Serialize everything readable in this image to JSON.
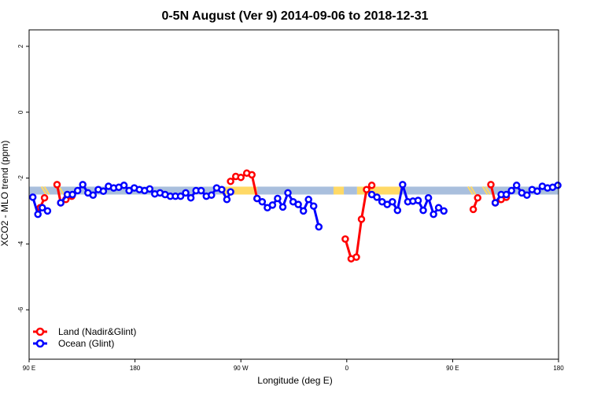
{
  "chart_data": {
    "type": "line",
    "title": "0-5N August (Ver 9)   2014-09-06 to 2018-12-31",
    "xlabel": "Longitude (deg E)",
    "ylabel": "XCO2 - MLO trend (ppm)",
    "xlim": [
      90,
      450
    ],
    "ylim": [
      -7.5,
      2.5
    ],
    "x_ticks": [
      {
        "value": 90,
        "label": "90 E"
      },
      {
        "value": 162,
        "label": "180"
      },
      {
        "value": 234,
        "label": "90 W"
      },
      {
        "value": 306,
        "label": "0"
      },
      {
        "value": 378,
        "label": "90 E"
      },
      {
        "value": 450,
        "label": "180"
      }
    ],
    "y_ticks": [
      {
        "value": 2,
        "label": "2"
      },
      {
        "value": 0,
        "label": "0"
      },
      {
        "value": -2,
        "label": "-2"
      },
      {
        "value": -4,
        "label": "-4"
      },
      {
        "value": -6,
        "label": "-6"
      }
    ],
    "band": {
      "y_center": -2.38,
      "half_height": 0.12,
      "land_color": "#ffd966",
      "ocean_color": "#a9bfdd",
      "segments": [
        {
          "x0": 90,
          "x1": 221,
          "type": "ocean"
        },
        {
          "x0": 221,
          "x1": 245,
          "type": "land"
        },
        {
          "x0": 245,
          "x1": 297,
          "type": "ocean"
        },
        {
          "x0": 297,
          "x1": 304,
          "type": "land"
        },
        {
          "x0": 304,
          "x1": 313,
          "type": "ocean"
        },
        {
          "x0": 313,
          "x1": 343,
          "type": "land"
        },
        {
          "x0": 343,
          "x1": 460,
          "type": "ocean"
        }
      ],
      "land_hatch_x": [
        100,
        102,
        110,
        112,
        390,
        392,
        400,
        402
      ]
    },
    "series": [
      {
        "name": "Land (Nadir&Glint)",
        "color": "#ff0000",
        "segments": [
          [
            [
              97.5,
              -2.9
            ],
            [
              100.5,
              -2.6
            ]
          ],
          [
            [
              109,
              -2.2
            ],
            [
              111.5,
              -2.75
            ],
            [
              115,
              -2.65
            ],
            [
              119,
              -2.55
            ]
          ],
          [
            [
              227,
              -2.1
            ],
            [
              230.5,
              -1.95
            ],
            [
              234,
              -1.98
            ],
            [
              238,
              -1.85
            ],
            [
              241.5,
              -1.9
            ],
            [
              245,
              -2.62
            ]
          ],
          [
            [
              305,
              -3.85
            ],
            [
              309,
              -4.45
            ],
            [
              312.5,
              -4.4
            ],
            [
              316,
              -3.25
            ],
            [
              319.5,
              -2.35
            ],
            [
              323,
              -2.22
            ]
          ],
          [
            [
              392,
              -2.95
            ],
            [
              395,
              -2.6
            ]
          ],
          [
            [
              404,
              -2.2
            ],
            [
              407,
              -2.75
            ],
            [
              411,
              -2.65
            ],
            [
              414.5,
              -2.58
            ]
          ]
        ]
      },
      {
        "name": "Ocean (Glint)",
        "color": "#0000ff",
        "segments": [
          [
            [
              92.5,
              -2.58
            ],
            [
              96,
              -3.1
            ],
            [
              99,
              -2.9
            ],
            [
              102.5,
              -3.0
            ]
          ],
          [
            [
              111.5,
              -2.75
            ],
            [
              116,
              -2.5
            ],
            [
              119.5,
              -2.5
            ],
            [
              123,
              -2.38
            ],
            [
              126.5,
              -2.2
            ],
            [
              130,
              -2.45
            ],
            [
              133.5,
              -2.52
            ],
            [
              137,
              -2.35
            ],
            [
              140.5,
              -2.4
            ],
            [
              144,
              -2.25
            ],
            [
              147.5,
              -2.3
            ],
            [
              151,
              -2.28
            ],
            [
              154.5,
              -2.22
            ],
            [
              158,
              -2.38
            ],
            [
              161.5,
              -2.3
            ],
            [
              165,
              -2.35
            ],
            [
              168.5,
              -2.38
            ],
            [
              172,
              -2.33
            ],
            [
              175.5,
              -2.48
            ],
            [
              179,
              -2.45
            ],
            [
              182.5,
              -2.5
            ],
            [
              186,
              -2.55
            ],
            [
              189.5,
              -2.55
            ],
            [
              193,
              -2.55
            ],
            [
              196.5,
              -2.45
            ],
            [
              200,
              -2.6
            ],
            [
              203.5,
              -2.38
            ],
            [
              207,
              -2.38
            ],
            [
              210.5,
              -2.55
            ],
            [
              214,
              -2.52
            ],
            [
              217.5,
              -2.3
            ],
            [
              221,
              -2.35
            ],
            [
              224.5,
              -2.65
            ],
            [
              227,
              -2.42
            ]
          ],
          [
            [
              245,
              -2.62
            ],
            [
              248.5,
              -2.72
            ],
            [
              252,
              -2.9
            ],
            [
              255.5,
              -2.82
            ],
            [
              259,
              -2.62
            ],
            [
              262.5,
              -2.88
            ],
            [
              266,
              -2.45
            ],
            [
              269.5,
              -2.72
            ],
            [
              273,
              -2.8
            ],
            [
              276.5,
              -3.0
            ],
            [
              280,
              -2.65
            ],
            [
              283.5,
              -2.85
            ],
            [
              287,
              -3.48
            ]
          ],
          [
            [
              323,
              -2.5
            ],
            [
              326.5,
              -2.58
            ],
            [
              330,
              -2.72
            ],
            [
              333.5,
              -2.8
            ],
            [
              337,
              -2.72
            ],
            [
              340.5,
              -2.98
            ],
            [
              344,
              -2.2
            ],
            [
              347.5,
              -2.72
            ],
            [
              351,
              -2.7
            ],
            [
              354.5,
              -2.68
            ],
            [
              358,
              -2.98
            ],
            [
              361.5,
              -2.6
            ],
            [
              365,
              -3.1
            ],
            [
              368.5,
              -2.9
            ],
            [
              372,
              -3.0
            ]
          ],
          [
            [
              407,
              -2.75
            ],
            [
              411,
              -2.5
            ],
            [
              414.5,
              -2.5
            ],
            [
              418,
              -2.38
            ],
            [
              421.5,
              -2.22
            ],
            [
              425,
              -2.45
            ],
            [
              428.5,
              -2.52
            ],
            [
              432,
              -2.35
            ],
            [
              435.5,
              -2.4
            ],
            [
              439,
              -2.25
            ],
            [
              442.5,
              -2.3
            ],
            [
              446,
              -2.28
            ],
            [
              449.5,
              -2.22
            ]
          ]
        ]
      }
    ],
    "legend": {
      "position": "bottom-left",
      "entries": [
        "Land (Nadir&Glint)",
        "Ocean (Glint)"
      ]
    },
    "grid": false
  }
}
